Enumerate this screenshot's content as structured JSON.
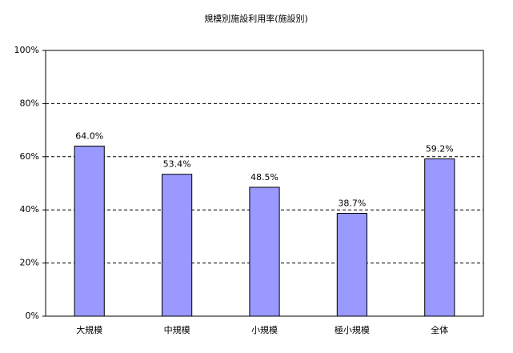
{
  "chart_data": {
    "type": "bar",
    "title": "規模別施設利用率(施設別)",
    "categories": [
      "大規模",
      "中規模",
      "小規模",
      "極小規模",
      "全体"
    ],
    "values": [
      64.0,
      53.4,
      48.5,
      38.7,
      59.2
    ],
    "value_labels": [
      "64.0%",
      "53.4%",
      "48.5%",
      "38.7%",
      "59.2%"
    ],
    "color": "#9999ff",
    "ylim": [
      0,
      100
    ],
    "yticks": [
      {
        "value": 0,
        "label": "0%"
      },
      {
        "value": 20,
        "label": "20%"
      },
      {
        "value": 40,
        "label": "40%"
      },
      {
        "value": 60,
        "label": "60%"
      },
      {
        "value": 80,
        "label": "80%"
      },
      {
        "value": 100,
        "label": "100%"
      }
    ],
    "grid": true
  }
}
